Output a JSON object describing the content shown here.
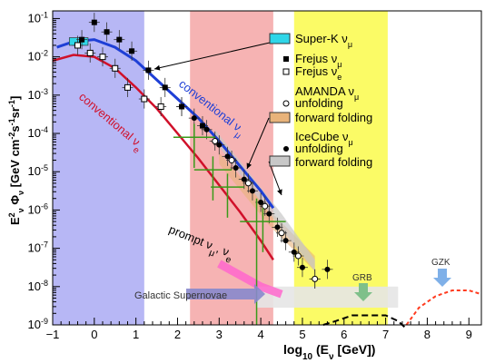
{
  "chart_data": {
    "type": "scatter",
    "title": "",
    "xlabel": "log10 (Eν [GeV])",
    "ylabel": "E²ν Φν [GeV cm⁻² s⁻¹ sr⁻¹]",
    "x_label_parts": {
      "log": "log",
      "sub10": "10",
      "rest_a": " (E",
      "sub_nu": "ν",
      "rest_b": " [GeV])"
    },
    "y_label_parts": {
      "e": "E",
      "sup2": "2",
      "sub_nu": "ν",
      "phi": " Φ",
      "sub_nu2": "ν",
      "bracket": " [GeV cm",
      "sup_m2": "-2",
      "s": "s",
      "sup_m1a": "-1",
      "sr": "sr",
      "sup_m1b": "-1",
      "close": "]"
    },
    "xlim": [
      -1,
      9.3
    ],
    "ylim_log10": [
      -9,
      -0.8
    ],
    "log_y": true,
    "x_ticks": [
      "−1",
      "0",
      "1",
      "2",
      "3",
      "4",
      "5",
      "6",
      "7",
      "8",
      "9"
    ],
    "y_ticks": [
      {
        "exp": -9,
        "label_base": "10",
        "label_exp": "-9"
      },
      {
        "exp": -8,
        "label_base": "10",
        "label_exp": "-8"
      },
      {
        "exp": -7,
        "label_base": "10",
        "label_exp": "-7"
      },
      {
        "exp": -6,
        "label_base": "10",
        "label_exp": "-6"
      },
      {
        "exp": -5,
        "label_base": "10",
        "label_exp": "-5"
      },
      {
        "exp": -4,
        "label_base": "10",
        "label_exp": "-4"
      },
      {
        "exp": -3,
        "label_base": "10",
        "label_exp": "-3"
      },
      {
        "exp": -2,
        "label_base": "10",
        "label_exp": "-2"
      },
      {
        "exp": -1,
        "label_base": "10",
        "label_exp": "-1"
      }
    ],
    "bands": [
      {
        "name": "blue",
        "x0": -1,
        "x1": 1.2,
        "color": "#b7b7f5"
      },
      {
        "name": "red",
        "x0": 2.3,
        "x1": 4.3,
        "color": "#f6b3b3"
      },
      {
        "name": "yellow",
        "x0": 4.8,
        "x1": 7.05,
        "color": "#fbfb66"
      }
    ],
    "curves": {
      "conv_numu": {
        "color": "#1e3fd6",
        "points": [
          [
            -0.9,
            -1.75
          ],
          [
            -0.5,
            -1.6
          ],
          [
            0,
            -1.55
          ],
          [
            0.5,
            -1.75
          ],
          [
            1,
            -2.1
          ],
          [
            1.5,
            -2.6
          ],
          [
            2,
            -3.1
          ],
          [
            2.5,
            -3.6
          ],
          [
            3,
            -4.2
          ],
          [
            3.5,
            -4.85
          ],
          [
            4,
            -5.5
          ],
          [
            4.3,
            -5.95
          ]
        ]
      },
      "conv_nue": {
        "color": "#d0102a",
        "points": [
          [
            -1,
            -2.1
          ],
          [
            -0.5,
            -1.95
          ],
          [
            0,
            -2.0
          ],
          [
            0.5,
            -2.3
          ],
          [
            1,
            -2.8
          ],
          [
            1.5,
            -3.35
          ],
          [
            2,
            -4.0
          ],
          [
            2.5,
            -4.65
          ],
          [
            3,
            -5.35
          ],
          [
            3.5,
            -6.05
          ],
          [
            4,
            -6.8
          ],
          [
            4.3,
            -7.3
          ]
        ]
      },
      "gzk": {
        "color": "#ff3b1f",
        "points": [
          [
            7.5,
            -9.0
          ],
          [
            7.8,
            -8.55
          ],
          [
            8.2,
            -8.25
          ],
          [
            8.6,
            -8.1
          ],
          [
            9.0,
            -8.1
          ],
          [
            9.3,
            -8.2
          ]
        ]
      },
      "grb_dash": {
        "color": "#000000",
        "points": [
          [
            5.5,
            -9.0
          ],
          [
            5.8,
            -8.9
          ],
          [
            6.2,
            -8.75
          ],
          [
            7.0,
            -8.75
          ],
          [
            7.3,
            -8.9
          ],
          [
            7.5,
            -9.1
          ]
        ]
      },
      "prompt": {
        "color": "#ff66cc",
        "points": [
          [
            3.0,
            -7.4
          ],
          [
            4.0,
            -8.0
          ],
          [
            4.5,
            -8.2
          ]
        ]
      }
    },
    "series": [
      {
        "name": "Frejus νμ",
        "marker": "filled-square",
        "points": [
          [
            -0.3,
            -1.55
          ],
          [
            0.0,
            -1.1
          ],
          [
            0.3,
            -1.35
          ],
          [
            0.6,
            -1.55
          ],
          [
            0.9,
            -1.85
          ],
          [
            1.3,
            -2.35
          ],
          [
            1.7,
            -2.8
          ],
          [
            2.1,
            -3.3
          ],
          [
            2.6,
            -3.8
          ]
        ]
      },
      {
        "name": "Frejus νe",
        "marker": "open-square",
        "points": [
          [
            -0.4,
            -1.7
          ],
          [
            -0.1,
            -1.9
          ],
          [
            0.2,
            -2.0
          ],
          [
            0.5,
            -2.3
          ],
          [
            0.8,
            -2.8
          ],
          [
            1.2,
            -3.1
          ],
          [
            1.6,
            -3.3
          ]
        ]
      },
      {
        "name": "IceCube νμ unfolding",
        "marker": "filled-circle",
        "points": [
          [
            2.1,
            -3.3
          ],
          [
            2.4,
            -3.6
          ],
          [
            2.7,
            -3.9
          ],
          [
            3.0,
            -4.3
          ],
          [
            3.2,
            -4.6
          ],
          [
            3.4,
            -4.9
          ],
          [
            3.6,
            -5.2
          ],
          [
            3.8,
            -5.5
          ],
          [
            4.0,
            -5.8
          ],
          [
            4.2,
            -6.1
          ],
          [
            4.4,
            -6.45
          ],
          [
            4.6,
            -6.8
          ],
          [
            4.8,
            -7.1
          ],
          [
            5.0,
            -7.5
          ],
          [
            5.3,
            -7.8
          ],
          [
            5.6,
            -7.55
          ]
        ]
      },
      {
        "name": "AMANDA νμ unfolding",
        "marker": "open-circle",
        "points": [
          [
            2.9,
            -4.2
          ],
          [
            3.3,
            -4.7
          ],
          [
            3.7,
            -5.3
          ],
          [
            4.1,
            -5.9
          ],
          [
            4.5,
            -6.6
          ],
          [
            4.9,
            -7.2
          ],
          [
            5.3,
            -7.8
          ]
        ]
      }
    ],
    "upper_limits": [
      {
        "x0": 1.9,
        "x1": 2.9,
        "y": -4.1
      },
      {
        "x0": 2.4,
        "x1": 3.3,
        "y": -4.95
      },
      {
        "x0": 2.8,
        "x1": 3.6,
        "y": -5.4
      },
      {
        "x0": 3.5,
        "x1": 4.6,
        "y": -6.3
      }
    ],
    "shaded_fold": {
      "forward_folding_amanda": [
        [
          3.0,
          -4.5
        ],
        [
          4.2,
          -6.0
        ],
        [
          5.3,
          -7.2
        ],
        [
          5.3,
          -7.6
        ],
        [
          4.2,
          -6.4
        ],
        [
          3.0,
          -4.8
        ]
      ],
      "forward_folding_icecube": [
        [
          2.9,
          -3.9
        ],
        [
          4.5,
          -6.1
        ],
        [
          5.3,
          -7.3
        ],
        [
          5.3,
          -7.6
        ],
        [
          4.5,
          -6.5
        ],
        [
          2.9,
          -4.2
        ]
      ]
    },
    "annotations": {
      "conv_numu_label": {
        "text_main": "conventional ν",
        "text_sub": "μ"
      },
      "conv_nue_label": {
        "text_main": "conventional ν",
        "text_sub": "e"
      },
      "prompt_label": {
        "text": "prompt ν",
        "sub1": "μ",
        "sep": ", ν",
        "sub2": "e"
      },
      "galactic_label": "Galactic Supernovae",
      "grb_label": "GRB",
      "gzk_label": "GZK"
    },
    "legend": [
      {
        "kind": "box",
        "color": "#2fd6e8",
        "main": "Super-K ν",
        "sub": "μ"
      },
      {
        "kind": "filled-square",
        "main": "Frejus ν",
        "sub": "μ"
      },
      {
        "kind": "open-square",
        "main": "Frejus ν",
        "sub": "e"
      },
      {
        "kind": "open-circle",
        "main": "AMANDA ν",
        "sub": "μ",
        "line2": "unfolding"
      },
      {
        "kind": "box",
        "color": "#e8b37a",
        "main": "forward folding",
        "sub": ""
      },
      {
        "kind": "filled-circle",
        "main": "IceCube ν",
        "sub": "μ",
        "line2": "unfolding"
      },
      {
        "kind": "box",
        "color": "#c8c8c8",
        "main": "forward folding",
        "sub": ""
      }
    ],
    "legend_placement": "right-inside"
  }
}
